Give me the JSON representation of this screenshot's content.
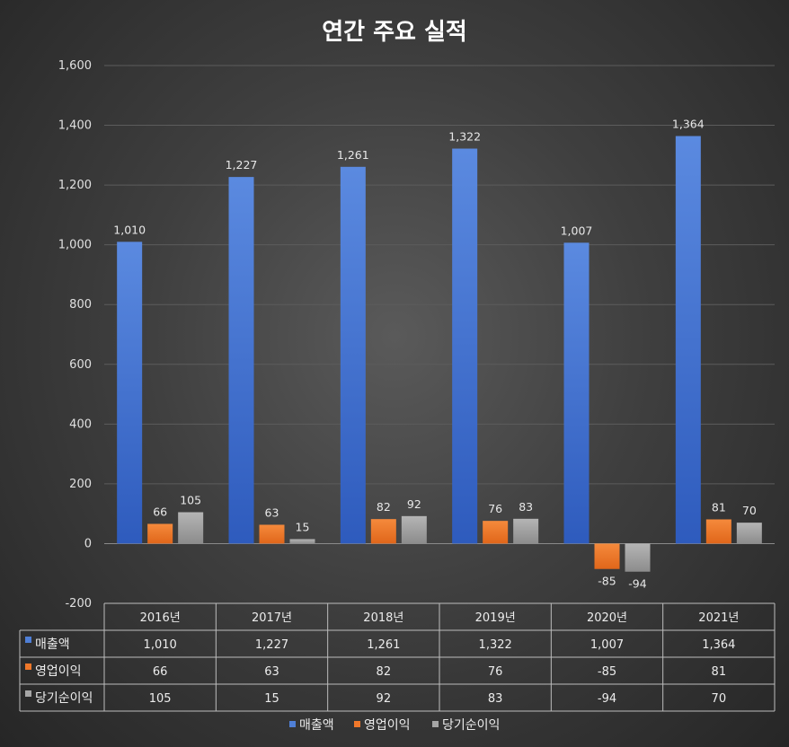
{
  "chart_data": {
    "type": "bar",
    "title": "연간 주요 실적",
    "categories": [
      "2016년",
      "2017년",
      "2018년",
      "2019년",
      "2020년",
      "2021년"
    ],
    "series": [
      {
        "name": "매출액",
        "color": "#4f7fd6",
        "values": [
          1010,
          1227,
          1261,
          1322,
          1007,
          1364
        ]
      },
      {
        "name": "영업이익",
        "color": "#f0782a",
        "values": [
          66,
          63,
          82,
          76,
          -85,
          81
        ]
      },
      {
        "name": "당기순이익",
        "color": "#a6a6a6",
        "values": [
          105,
          15,
          92,
          83,
          -94,
          70
        ]
      }
    ],
    "ylim": [
      -200,
      1600
    ],
    "yticks": [
      -200,
      0,
      200,
      400,
      600,
      800,
      1000,
      1200,
      1400,
      1600
    ],
    "grid": true,
    "legend": "bottom",
    "data_table": true
  }
}
